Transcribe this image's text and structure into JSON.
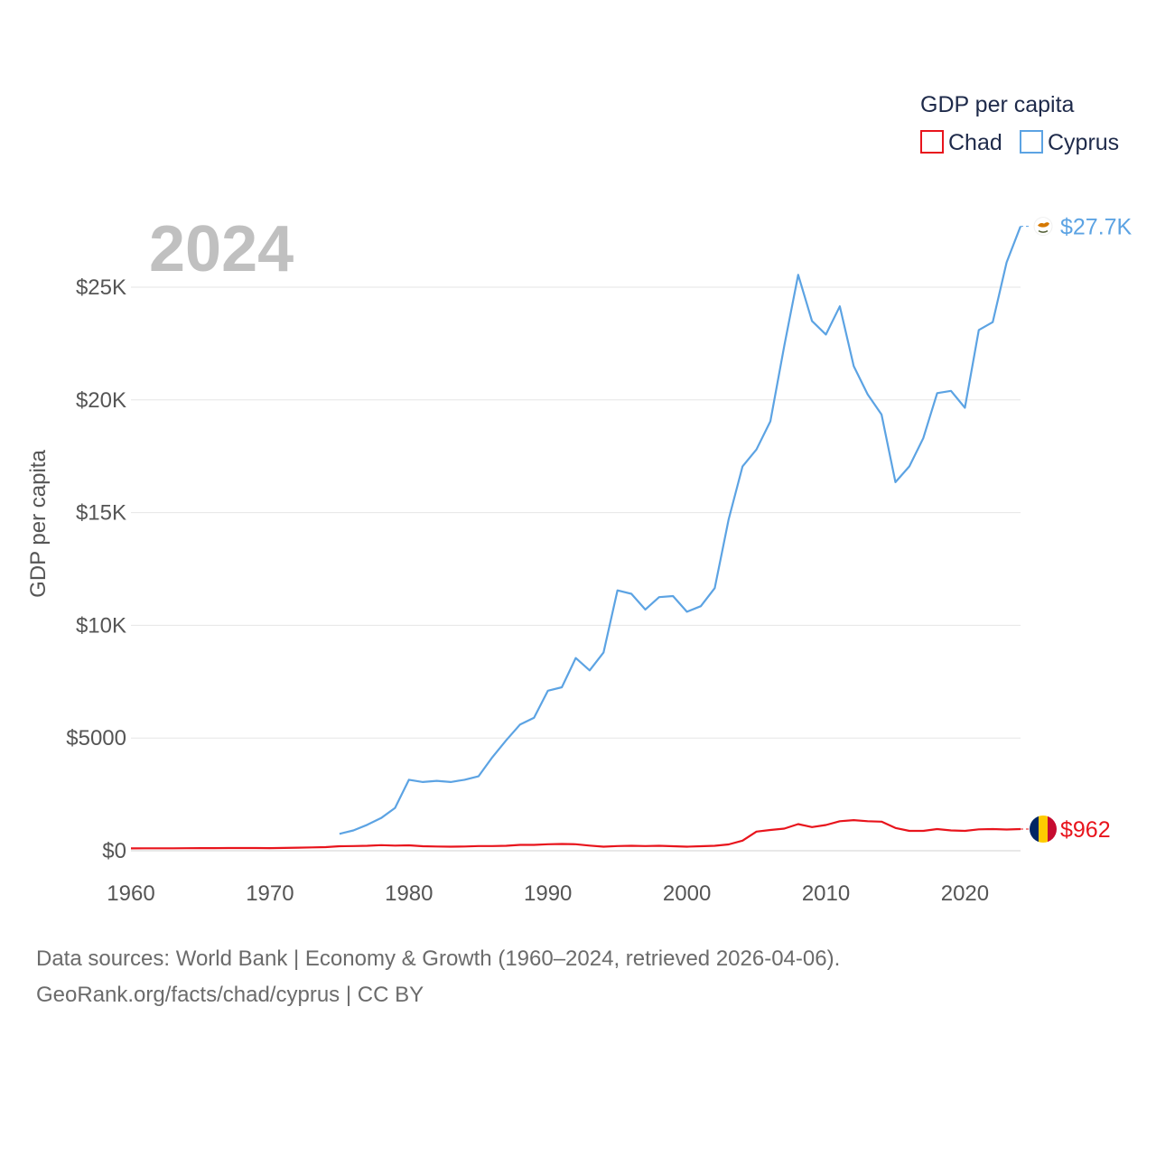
{
  "chart_data": {
    "type": "line",
    "year_overlay": "2024",
    "ylabel": "GDP per capita",
    "xlabel": "",
    "xlim": [
      1960,
      2024
    ],
    "ylim": [
      0,
      28000
    ],
    "grid": true,
    "legend": {
      "title": "GDP per capita",
      "placement": "top-right",
      "entries": [
        {
          "name": "Chad",
          "color": "#e8141c"
        },
        {
          "name": "Cyprus",
          "color": "#5ca3e3"
        }
      ]
    },
    "x_ticks": [
      {
        "value": 1960,
        "label": "1960"
      },
      {
        "value": 1970,
        "label": "1970"
      },
      {
        "value": 1980,
        "label": "1980"
      },
      {
        "value": 1990,
        "label": "1990"
      },
      {
        "value": 2000,
        "label": "2000"
      },
      {
        "value": 2010,
        "label": "2010"
      },
      {
        "value": 2020,
        "label": "2020"
      }
    ],
    "y_ticks": [
      {
        "value": 0,
        "label": "$0"
      },
      {
        "value": 5000,
        "label": "$5000"
      },
      {
        "value": 10000,
        "label": "$10K"
      },
      {
        "value": 15000,
        "label": "$15K"
      },
      {
        "value": 20000,
        "label": "$20K"
      },
      {
        "value": 25000,
        "label": "$25K"
      }
    ],
    "series": [
      {
        "name": "Chad",
        "color": "#e8141c",
        "flag_icon": "chad-flag-icon",
        "end_label": "$962",
        "x": [
          1960,
          1961,
          1962,
          1963,
          1964,
          1965,
          1966,
          1967,
          1968,
          1969,
          1970,
          1971,
          1972,
          1973,
          1974,
          1975,
          1976,
          1977,
          1978,
          1979,
          1980,
          1981,
          1982,
          1983,
          1984,
          1985,
          1986,
          1987,
          1988,
          1989,
          1990,
          1991,
          1992,
          1993,
          1994,
          1995,
          1996,
          1997,
          1998,
          1999,
          2000,
          2001,
          2002,
          2003,
          2004,
          2005,
          2006,
          2007,
          2008,
          2009,
          2010,
          2011,
          2012,
          2013,
          2014,
          2015,
          2016,
          2017,
          2018,
          2019,
          2020,
          2021,
          2022,
          2023,
          2024
        ],
        "values": [
          105,
          108,
          110,
          110,
          112,
          115,
          118,
          120,
          120,
          120,
          118,
          125,
          135,
          150,
          160,
          200,
          210,
          220,
          250,
          230,
          240,
          200,
          190,
          180,
          190,
          210,
          210,
          220,
          260,
          260,
          290,
          300,
          290,
          230,
          180,
          210,
          220,
          210,
          220,
          200,
          180,
          200,
          220,
          280,
          450,
          850,
          920,
          980,
          1180,
          1050,
          1140,
          1310,
          1360,
          1310,
          1290,
          1010,
          880,
          880,
          960,
          900,
          880,
          950,
          960,
          940,
          962
        ]
      },
      {
        "name": "Cyprus",
        "color": "#5ca3e3",
        "flag_icon": "cyprus-flag-icon",
        "end_label": "$27.7K",
        "x": [
          1975,
          1976,
          1977,
          1978,
          1979,
          1980,
          1981,
          1982,
          1983,
          1984,
          1985,
          1986,
          1987,
          1988,
          1989,
          1990,
          1991,
          1992,
          1993,
          1994,
          1995,
          1996,
          1997,
          1998,
          1999,
          2000,
          2001,
          2002,
          2003,
          2004,
          2005,
          2006,
          2007,
          2008,
          2009,
          2010,
          2011,
          2012,
          2013,
          2014,
          2015,
          2016,
          2017,
          2018,
          2019,
          2020,
          2021,
          2022,
          2023,
          2024
        ],
        "values": [
          750,
          900,
          1150,
          1450,
          1900,
          3150,
          3050,
          3100,
          3050,
          3150,
          3300,
          4150,
          4900,
          5600,
          5900,
          7100,
          7250,
          8550,
          8000,
          8800,
          11550,
          11400,
          10700,
          11250,
          11300,
          10600,
          10850,
          11650,
          14700,
          17050,
          17800,
          19050,
          22400,
          25550,
          23500,
          22900,
          24150,
          21500,
          20250,
          19350,
          16350,
          17050,
          18300,
          20300,
          20400,
          19650,
          23100,
          23450,
          26100,
          27700
        ]
      }
    ]
  },
  "source": {
    "line1": "Data sources: World Bank | Economy & Growth (1960–2024, retrieved 2026-04-06).",
    "line2": "GeoRank.org/facts/chad/cyprus | CC BY"
  }
}
